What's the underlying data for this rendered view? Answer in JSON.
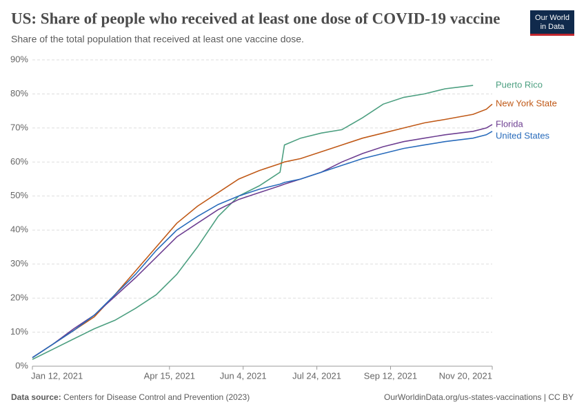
{
  "chart_data": {
    "type": "line",
    "title": "US: Share of people who received at least one dose of COVID-19 vaccine",
    "subtitle": "Share of the total population that received at least one vaccine dose.",
    "source_label": "Data source:",
    "source": "Centers for Disease Control and Prevention (2023)",
    "credit": "OurWorldinData.org/us-states-vaccinations | CC BY",
    "logo": [
      "Our World",
      "in Data"
    ],
    "x": [
      "2021-01-12",
      "2021-01-26",
      "2021-02-09",
      "2021-02-23",
      "2021-03-09",
      "2021-03-23",
      "2021-04-06",
      "2021-04-20",
      "2021-05-04",
      "2021-05-18",
      "2021-06-01",
      "2021-06-15",
      "2021-06-29",
      "2021-07-02",
      "2021-07-13",
      "2021-07-27",
      "2021-08-10",
      "2021-08-24",
      "2021-09-07",
      "2021-09-21",
      "2021-10-05",
      "2021-10-19",
      "2021-11-07",
      "2021-11-16",
      "2021-11-20"
    ],
    "xlim": [
      "2021-01-12",
      "2021-11-20"
    ],
    "xticks": [
      {
        "value": "2021-01-12",
        "label": "Jan 12, 2021"
      },
      {
        "value": "2021-04-15",
        "label": "Apr 15, 2021"
      },
      {
        "value": "2021-06-04",
        "label": "Jun 4, 2021"
      },
      {
        "value": "2021-07-24",
        "label": "Jul 24, 2021"
      },
      {
        "value": "2021-09-12",
        "label": "Sep 12, 2021"
      },
      {
        "value": "2021-11-20",
        "label": "Nov 20, 2021"
      }
    ],
    "ylim": [
      0,
      90
    ],
    "yticks": [
      {
        "value": 0,
        "label": "0%"
      },
      {
        "value": 10,
        "label": "10%"
      },
      {
        "value": 20,
        "label": "20%"
      },
      {
        "value": 30,
        "label": "30%"
      },
      {
        "value": 40,
        "label": "40%"
      },
      {
        "value": 50,
        "label": "50%"
      },
      {
        "value": 60,
        "label": "60%"
      },
      {
        "value": 70,
        "label": "70%"
      },
      {
        "value": 80,
        "label": "80%"
      },
      {
        "value": 90,
        "label": "90%"
      }
    ],
    "grid": true,
    "series": [
      {
        "name": "Puerto Rico",
        "color": "#4c9f80",
        "values": [
          2,
          5,
          8,
          11,
          13.5,
          17,
          21,
          27,
          35,
          44,
          50,
          53,
          57,
          65,
          67,
          68.5,
          69.5,
          73,
          77,
          79,
          80,
          81.5,
          82.5,
          null,
          null
        ]
      },
      {
        "name": "New York State",
        "color": "#c05917",
        "values": [
          2.5,
          6.5,
          10.5,
          14.5,
          21,
          28,
          35,
          42,
          47,
          51,
          55,
          57.5,
          59.5,
          60,
          61,
          63,
          65,
          67,
          68.5,
          70,
          71.5,
          72.5,
          74,
          75.5,
          77
        ]
      },
      {
        "name": "Florida",
        "color": "#6d3e91",
        "values": [
          2.5,
          6.5,
          11,
          15,
          20.5,
          26,
          32,
          38,
          42,
          46,
          49,
          51,
          53,
          53.5,
          55,
          57,
          60,
          62.5,
          64.5,
          66,
          67,
          68,
          69,
          70,
          71
        ]
      },
      {
        "name": "United States",
        "color": "#286bbb",
        "values": [
          2.5,
          6.5,
          10.5,
          15,
          21,
          27,
          34,
          40,
          44,
          47.5,
          50,
          52,
          53.5,
          54,
          55,
          57,
          59,
          61,
          62.5,
          64,
          65,
          66,
          67,
          68,
          69
        ]
      }
    ]
  }
}
